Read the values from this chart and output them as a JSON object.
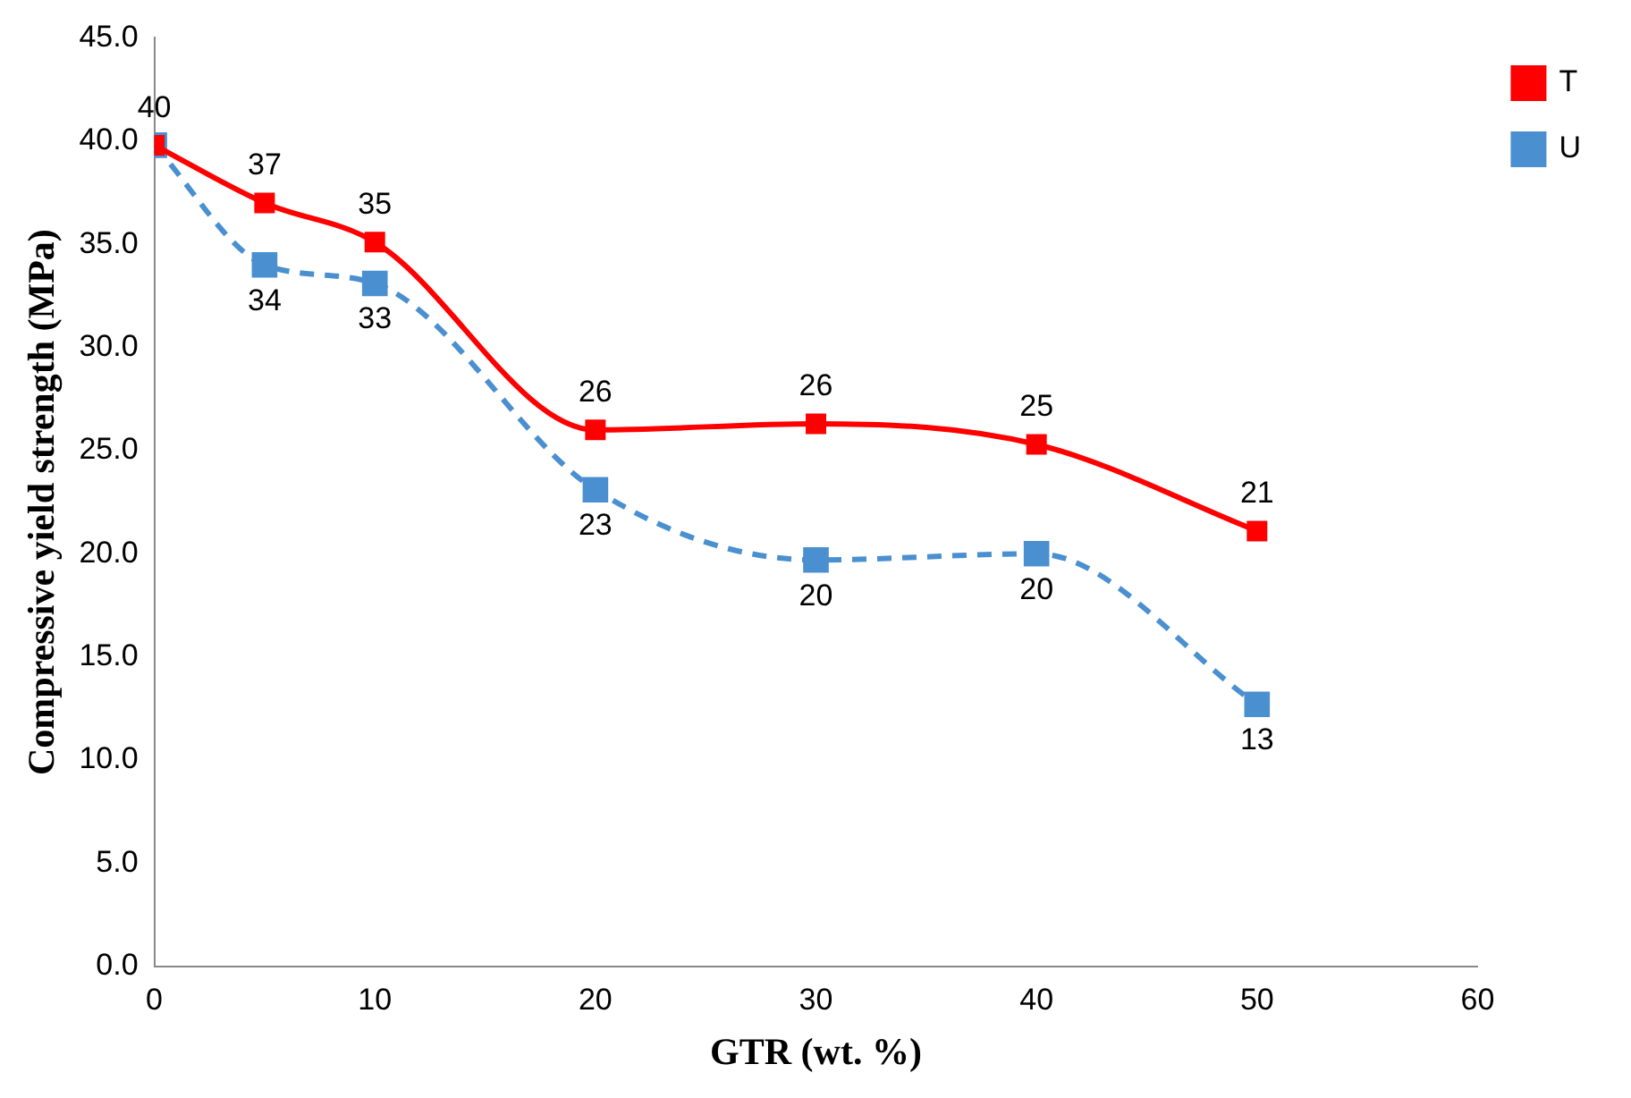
{
  "chart_data": {
    "type": "line",
    "xlabel": "GTR (wt. %)",
    "ylabel": "Compressive yield strength (MPa)",
    "x": [
      0,
      5,
      10,
      20,
      30,
      40,
      50
    ],
    "series": [
      {
        "name": "T",
        "color": "#ff0000",
        "values": [
          39.8,
          37,
          35.1,
          26,
          26.3,
          25.3,
          21.1
        ],
        "value_labels": [
          "40",
          "37",
          "35",
          "26",
          "26",
          "25",
          "21"
        ],
        "line_style": "solid"
      },
      {
        "name": "U",
        "color": "#4a90d0",
        "values": [
          39.8,
          34,
          33.1,
          23.1,
          19.7,
          20,
          12.7
        ],
        "value_labels": [
          null,
          "34",
          "33",
          "23",
          "20",
          "20",
          "13"
        ],
        "line_style": "dashed"
      }
    ],
    "xlim": [
      0,
      60
    ],
    "xticks": [
      0,
      10,
      20,
      30,
      40,
      50,
      60
    ],
    "ylim": [
      0,
      45
    ],
    "yticks": [
      {
        "value": 0,
        "label": "0.0"
      },
      {
        "value": 5,
        "label": "5.0"
      },
      {
        "value": 10,
        "label": "10.0"
      },
      {
        "value": 15,
        "label": "15.0"
      },
      {
        "value": 20,
        "label": "20.0"
      },
      {
        "value": 25,
        "label": "25.0"
      },
      {
        "value": 30,
        "label": "30.0"
      },
      {
        "value": 35,
        "label": "35.0"
      },
      {
        "value": 40,
        "label": "40.0"
      },
      {
        "value": 45,
        "label": "45.0"
      }
    ],
    "grid": false,
    "legend": "right",
    "marker": "square"
  }
}
